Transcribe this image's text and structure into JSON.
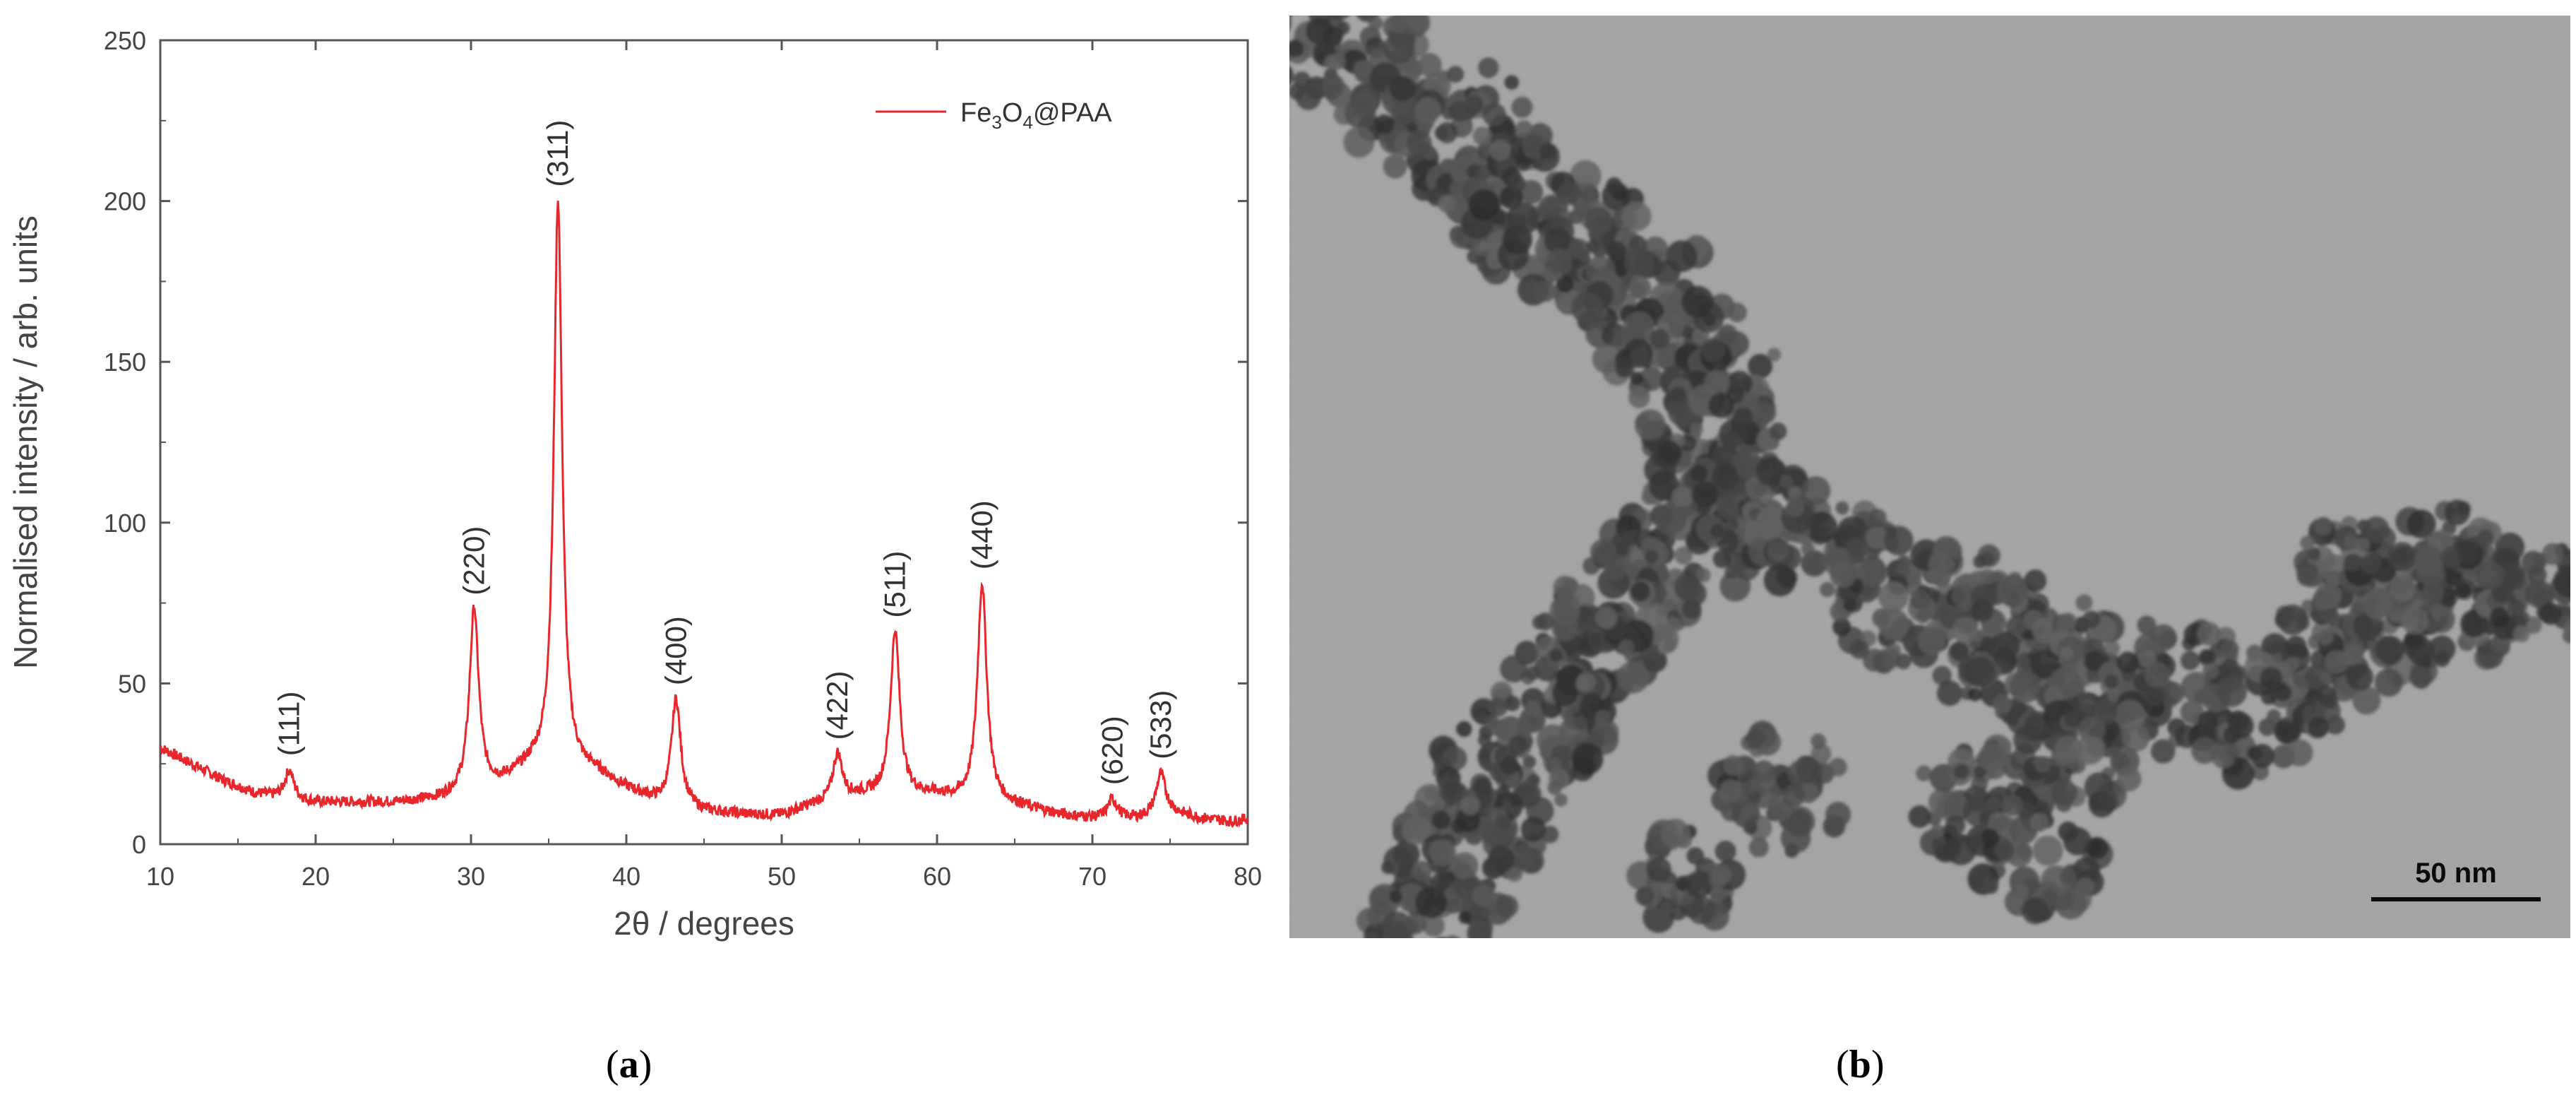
{
  "chart_data": {
    "type": "line",
    "xlabel": "2θ / degrees",
    "ylabel": "Normalised intensity / arb. units",
    "xlim": [
      10,
      80
    ],
    "ylim": [
      0,
      250
    ],
    "xticks": [
      "10",
      "20",
      "30",
      "40",
      "50",
      "60",
      "70",
      "80"
    ],
    "yticks": [
      "0",
      "50",
      "100",
      "150",
      "200",
      "250"
    ],
    "grid": false,
    "legend_position": "top-right",
    "series": [
      {
        "name_parts": {
          "base": "Fe",
          "sub1": "3",
          "mid": "O",
          "sub2": "4",
          "tail": "@PAA"
        },
        "color": "#e8262b",
        "baseline": [
          [
            10,
            30
          ],
          [
            12,
            25
          ],
          [
            14,
            20
          ],
          [
            16,
            16
          ],
          [
            18,
            14
          ],
          [
            20,
            13
          ],
          [
            25,
            13
          ],
          [
            28,
            14
          ],
          [
            30,
            16
          ],
          [
            32,
            19
          ],
          [
            34,
            24
          ],
          [
            38,
            22
          ],
          [
            40,
            17
          ],
          [
            42,
            13
          ],
          [
            45,
            10
          ],
          [
            48,
            9
          ],
          [
            50,
            9
          ],
          [
            52,
            12
          ],
          [
            55,
            15
          ],
          [
            58,
            15
          ],
          [
            60,
            15
          ],
          [
            61,
            14
          ],
          [
            65,
            12
          ],
          [
            68,
            9
          ],
          [
            70,
            8
          ],
          [
            73,
            8
          ],
          [
            75,
            10
          ],
          [
            77,
            8
          ],
          [
            79,
            7
          ],
          [
            80,
            8
          ]
        ]
      }
    ],
    "peaks": [
      {
        "label": "(111)",
        "x": 18.3,
        "y": 23
      },
      {
        "label": "(220)",
        "x": 30.2,
        "y": 73
      },
      {
        "label": "(311)",
        "x": 35.6,
        "y": 200
      },
      {
        "label": "(400)",
        "x": 43.2,
        "y": 45
      },
      {
        "label": "(422)",
        "x": 53.6,
        "y": 28
      },
      {
        "label": "(511)",
        "x": 57.3,
        "y": 66
      },
      {
        "label": "(440)",
        "x": 62.9,
        "y": 81
      },
      {
        "label": "(620)",
        "x": 71.3,
        "y": 14
      },
      {
        "label": "(533)",
        "x": 74.4,
        "y": 22
      }
    ]
  },
  "tem": {
    "scale_bar_label": "50 nm"
  },
  "captions": {
    "a": "a",
    "b": "b"
  },
  "colors": {
    "series": "#e8262b",
    "axis": "#555555",
    "tem_background": "#9c9c9c",
    "particle_dark": "#2e2e2e"
  }
}
